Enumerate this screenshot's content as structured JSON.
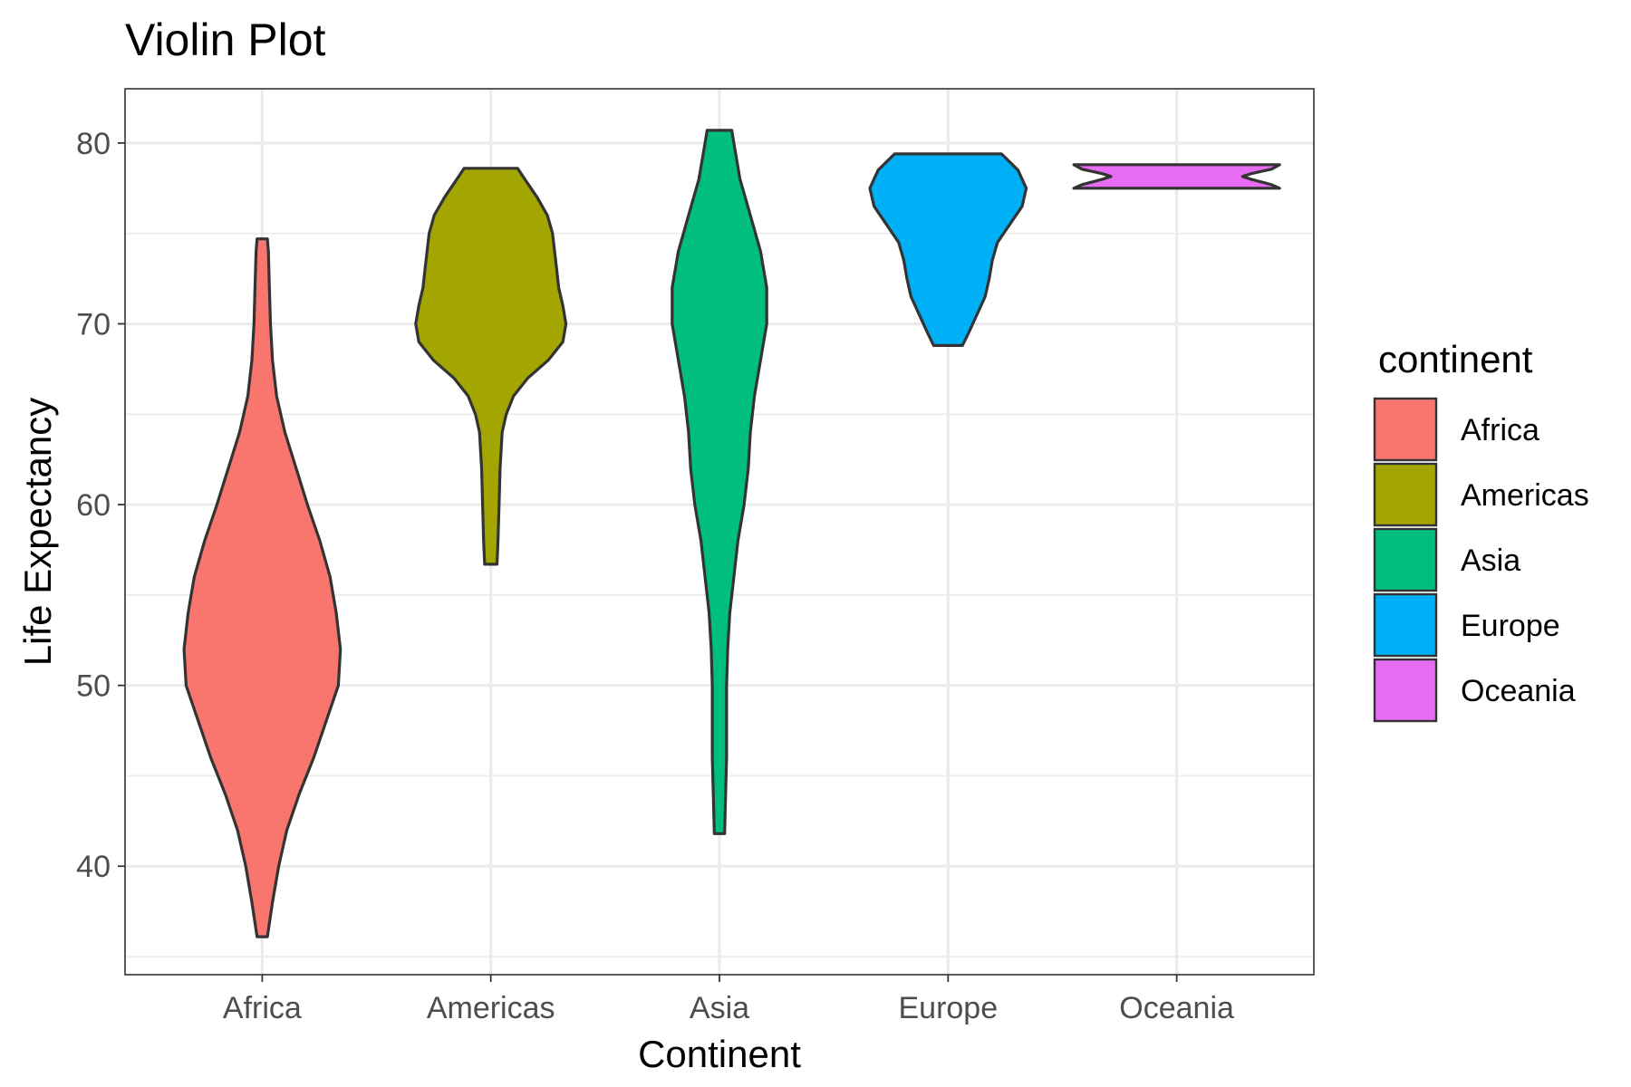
{
  "chart_data": {
    "type": "violin",
    "title": "Violin Plot",
    "xlabel": "Continent",
    "ylabel": "Life Expectancy",
    "ylim": [
      34,
      83
    ],
    "y_ticks": [
      40,
      50,
      60,
      70,
      80
    ],
    "y_minor_ticks": [
      35,
      45,
      55,
      65,
      75
    ],
    "grid": true,
    "categories": [
      "Africa",
      "Americas",
      "Asia",
      "Europe",
      "Oceania"
    ],
    "legend": {
      "title": "continent",
      "position": "right"
    },
    "series": [
      {
        "name": "Africa",
        "color": "#F8766D",
        "min": 36.1,
        "max": 74.7,
        "density": [
          [
            36.1,
            0.05
          ],
          [
            38,
            0.1
          ],
          [
            40,
            0.16
          ],
          [
            42,
            0.24
          ],
          [
            44,
            0.36
          ],
          [
            46,
            0.5
          ],
          [
            48,
            0.62
          ],
          [
            50,
            0.74
          ],
          [
            52,
            0.76
          ],
          [
            54,
            0.72
          ],
          [
            56,
            0.66
          ],
          [
            58,
            0.56
          ],
          [
            60,
            0.44
          ],
          [
            62,
            0.33
          ],
          [
            64,
            0.22
          ],
          [
            66,
            0.14
          ],
          [
            68,
            0.1
          ],
          [
            70,
            0.08
          ],
          [
            72,
            0.07
          ],
          [
            74,
            0.06
          ],
          [
            74.7,
            0.05
          ]
        ]
      },
      {
        "name": "Americas",
        "color": "#A3A500",
        "min": 56.7,
        "max": 78.6,
        "density": [
          [
            56.7,
            0.06
          ],
          [
            58,
            0.07
          ],
          [
            60,
            0.08
          ],
          [
            62,
            0.09
          ],
          [
            64,
            0.11
          ],
          [
            65,
            0.15
          ],
          [
            66,
            0.22
          ],
          [
            67,
            0.36
          ],
          [
            68,
            0.56
          ],
          [
            69,
            0.7
          ],
          [
            70,
            0.73
          ],
          [
            71,
            0.7
          ],
          [
            72,
            0.66
          ],
          [
            73,
            0.64
          ],
          [
            74,
            0.62
          ],
          [
            75,
            0.6
          ],
          [
            76,
            0.55
          ],
          [
            77,
            0.45
          ],
          [
            78,
            0.33
          ],
          [
            78.6,
            0.26
          ]
        ]
      },
      {
        "name": "Asia",
        "color": "#00BF7D",
        "min": 41.8,
        "max": 80.7,
        "density": [
          [
            41.8,
            0.05
          ],
          [
            44,
            0.06
          ],
          [
            46,
            0.07
          ],
          [
            48,
            0.07
          ],
          [
            50,
            0.07
          ],
          [
            52,
            0.08
          ],
          [
            54,
            0.1
          ],
          [
            56,
            0.14
          ],
          [
            58,
            0.18
          ],
          [
            60,
            0.24
          ],
          [
            62,
            0.28
          ],
          [
            64,
            0.3
          ],
          [
            66,
            0.34
          ],
          [
            68,
            0.4
          ],
          [
            70,
            0.46
          ],
          [
            72,
            0.46
          ],
          [
            74,
            0.4
          ],
          [
            76,
            0.3
          ],
          [
            78,
            0.2
          ],
          [
            80,
            0.14
          ],
          [
            80.7,
            0.12
          ]
        ]
      },
      {
        "name": "Europe",
        "color": "#00B0F6",
        "min": 68.8,
        "max": 79.4,
        "density": [
          [
            68.8,
            0.14
          ],
          [
            69.5,
            0.2
          ],
          [
            70.5,
            0.28
          ],
          [
            71.5,
            0.36
          ],
          [
            72.5,
            0.4
          ],
          [
            73.5,
            0.43
          ],
          [
            74.5,
            0.48
          ],
          [
            75.5,
            0.6
          ],
          [
            76.5,
            0.72
          ],
          [
            77.5,
            0.76
          ],
          [
            78.5,
            0.68
          ],
          [
            79.4,
            0.52
          ]
        ]
      },
      {
        "name": "Oceania",
        "color": "#E76BF3",
        "min": 77.5,
        "max": 78.8,
        "density": [
          [
            77.5,
            1.0
          ],
          [
            77.7,
            0.92
          ],
          [
            78.0,
            0.72
          ],
          [
            78.15,
            0.64
          ],
          [
            78.3,
            0.72
          ],
          [
            78.55,
            0.92
          ],
          [
            78.8,
            1.0
          ]
        ]
      }
    ]
  }
}
